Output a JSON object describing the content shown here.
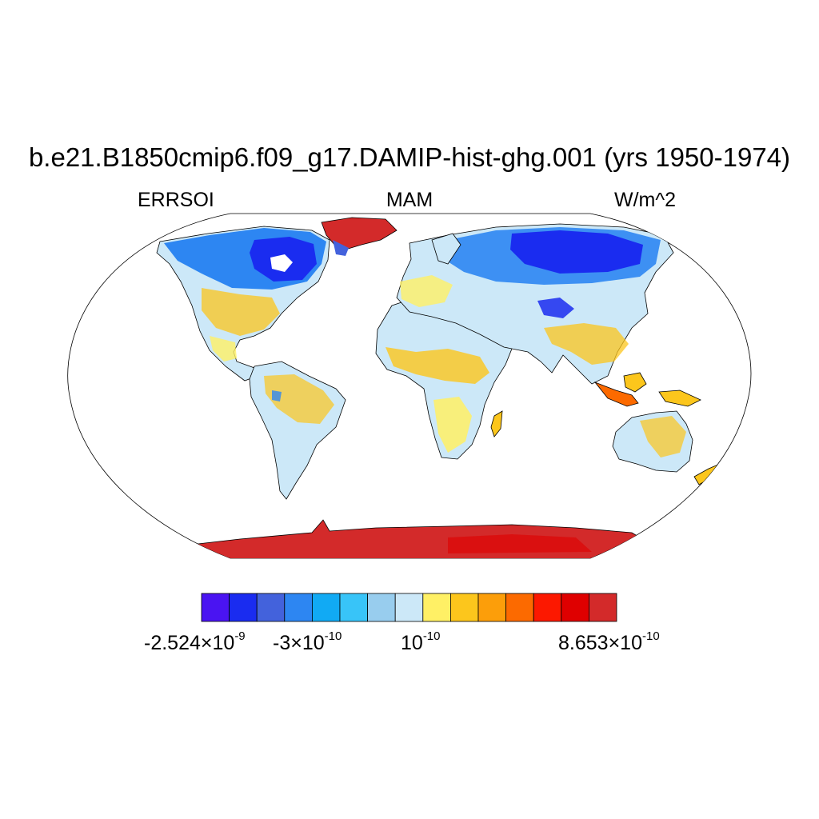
{
  "title": "b.e21.B1850cmip6.f09_g17.DAMIP-hist-ghg.001 (yrs 1950-1974)",
  "left_string": "ERRSOI",
  "center_string": "MAM",
  "right_string": "W/m^2",
  "projection": "Robinson",
  "colorbar": {
    "colors": [
      "#4a14f2",
      "#1a2cf0",
      "#4362dc",
      "#2d86f2",
      "#11aaf4",
      "#38c4f8",
      "#98cdee",
      "#cce8f8",
      "#fff065",
      "#fcc61c",
      "#fc9e0a",
      "#fc6a00",
      "#fc1800",
      "#df0000",
      "#d32a2a"
    ],
    "labels": [
      {
        "mantissa": "-2.524",
        "times": "×",
        "base": "10",
        "exp": "-9"
      },
      {
        "mantissa": "-3",
        "times": "×",
        "base": "10",
        "exp": "-10"
      },
      {
        "mantissa": "",
        "times": "",
        "base": "10",
        "exp": "-10"
      },
      {
        "mantissa": "8.653",
        "times": "×",
        "base": "10",
        "exp": "-10"
      }
    ]
  }
}
